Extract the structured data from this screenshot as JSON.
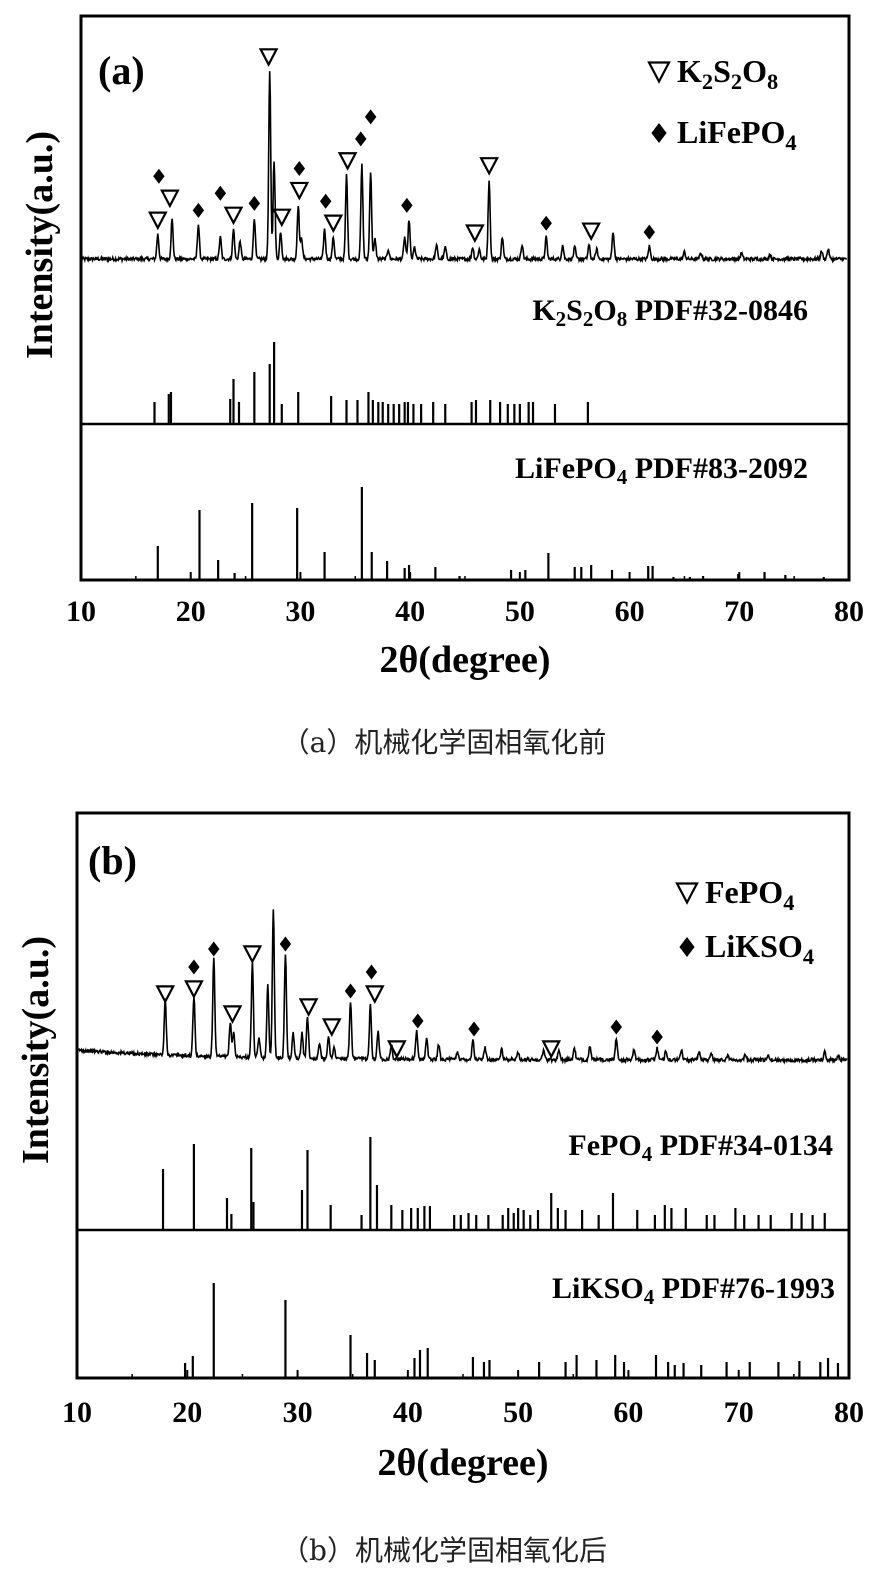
{
  "chart_data": [
    {
      "type": "line",
      "panel_label": "(a)",
      "xlabel": "2θ(degree)",
      "ylabel": "Intensity(a.u.)",
      "xlim": [
        10,
        80
      ],
      "xticks": [
        10,
        20,
        30,
        40,
        50,
        60,
        70,
        80
      ],
      "caption": "（a）机械化学固相氧化前",
      "legend": [
        {
          "symbol": "triangle-down-open",
          "formula": [
            "K",
            "2",
            "S",
            "2",
            "O",
            "8"
          ]
        },
        {
          "symbol": "diamond-filled",
          "formula": [
            "LiFePO",
            "4"
          ]
        }
      ],
      "series": [
        {
          "name": "measured",
          "peaks": [
            [
              17.0,
              25
            ],
            [
              18.3,
              40
            ],
            [
              20.7,
              35
            ],
            [
              22.7,
              22
            ],
            [
              23.9,
              30
            ],
            [
              24.5,
              18
            ],
            [
              25.8,
              42
            ],
            [
              27.2,
              190
            ],
            [
              27.6,
              100
            ],
            [
              28.2,
              28
            ],
            [
              29.8,
              55
            ],
            [
              30.1,
              22
            ],
            [
              32.2,
              30
            ],
            [
              33.0,
              22
            ],
            [
              34.2,
              85
            ],
            [
              35.6,
              95
            ],
            [
              36.4,
              88
            ],
            [
              36.8,
              20
            ],
            [
              38.0,
              10
            ],
            [
              39.5,
              22
            ],
            [
              39.9,
              40
            ],
            [
              40.4,
              12
            ],
            [
              42.4,
              14
            ],
            [
              43.2,
              12
            ],
            [
              45.7,
              12
            ],
            [
              46.3,
              10
            ],
            [
              47.2,
              80
            ],
            [
              48.4,
              22
            ],
            [
              50.2,
              15
            ],
            [
              52.4,
              22
            ],
            [
              53.9,
              14
            ],
            [
              55.0,
              12
            ],
            [
              56.3,
              14
            ],
            [
              57.0,
              10
            ],
            [
              58.5,
              28
            ],
            [
              61.8,
              13
            ],
            [
              65.0,
              7
            ],
            [
              66.5,
              6
            ],
            [
              70.2,
              6
            ],
            [
              72.8,
              5
            ],
            [
              77.5,
              8
            ],
            [
              78.1,
              10
            ]
          ]
        },
        {
          "name": "reference_1",
          "label": [
            "K",
            "2",
            "S",
            "2",
            "O",
            "8",
            " PDF#32-0846"
          ],
          "sticks": [
            [
              16.7,
              22
            ],
            [
              18.0,
              30
            ],
            [
              18.2,
              32
            ],
            [
              23.6,
              25
            ],
            [
              23.9,
              45
            ],
            [
              24.4,
              22
            ],
            [
              25.8,
              52
            ],
            [
              27.2,
              60
            ],
            [
              27.6,
              82
            ],
            [
              28.3,
              20
            ],
            [
              29.8,
              32
            ],
            [
              32.8,
              28
            ],
            [
              34.2,
              24
            ],
            [
              35.2,
              24
            ],
            [
              36.2,
              32
            ],
            [
              36.6,
              24
            ],
            [
              37.1,
              22
            ],
            [
              37.5,
              22
            ],
            [
              38.0,
              20
            ],
            [
              38.5,
              20
            ],
            [
              39.0,
              20
            ],
            [
              39.5,
              22
            ],
            [
              39.8,
              22
            ],
            [
              40.3,
              20
            ],
            [
              41.0,
              20
            ],
            [
              42.1,
              22
            ],
            [
              43.2,
              20
            ],
            [
              45.6,
              22
            ],
            [
              46.0,
              24
            ],
            [
              47.3,
              24
            ],
            [
              48.2,
              22
            ],
            [
              48.9,
              20
            ],
            [
              49.5,
              20
            ],
            [
              50.0,
              20
            ],
            [
              50.8,
              22
            ],
            [
              51.2,
              22
            ],
            [
              53.2,
              20
            ],
            [
              56.2,
              22
            ]
          ]
        },
        {
          "name": "reference_2",
          "label": [
            "LiFePO",
            "4",
            " PDF#83-2092"
          ],
          "sticks": [
            [
              17.0,
              34
            ],
            [
              20.8,
              70
            ],
            [
              22.5,
              20
            ],
            [
              24.0,
              7
            ],
            [
              25.6,
              77
            ],
            [
              29.7,
              72
            ],
            [
              32.2,
              28
            ],
            [
              35.6,
              93
            ],
            [
              36.5,
              28
            ],
            [
              37.9,
              19
            ],
            [
              39.5,
              12
            ],
            [
              39.9,
              15
            ],
            [
              42.3,
              13
            ],
            [
              44.5,
              4
            ],
            [
              49.2,
              10
            ],
            [
              50.5,
              10
            ],
            [
              52.6,
              27
            ],
            [
              55.0,
              13
            ],
            [
              55.6,
              13
            ],
            [
              56.5,
              15
            ],
            [
              58.4,
              10
            ],
            [
              61.7,
              14
            ],
            [
              62.1,
              14
            ],
            [
              64.0,
              3
            ],
            [
              65.5,
              3
            ],
            [
              66.7,
              4
            ],
            [
              69.9,
              6
            ],
            [
              72.3,
              8
            ],
            [
              74.2,
              5
            ],
            [
              77.7,
              3
            ]
          ]
        }
      ],
      "markers": [
        {
          "symbol": "triangle-down-open",
          "x": [
            17.0,
            18.1,
            23.9,
            27.1,
            28.3,
            29.9,
            33.0,
            34.3,
            45.9,
            47.2,
            56.5
          ]
        },
        {
          "symbol": "diamond-filled",
          "x": [
            17.1,
            20.7,
            22.7,
            25.8,
            29.9,
            32.3,
            35.5,
            36.4,
            39.7,
            52.4,
            61.8
          ]
        }
      ]
    },
    {
      "type": "line",
      "panel_label": "(b)",
      "xlabel": "2θ(degree)",
      "ylabel": "Intensity(a.u.)",
      "xlim": [
        10,
        80
      ],
      "xticks": [
        10,
        20,
        30,
        40,
        50,
        60,
        70,
        80
      ],
      "caption": "（b）机械化学固相氧化后",
      "legend": [
        {
          "symbol": "triangle-down-open",
          "formula": [
            "FePO",
            "4"
          ]
        },
        {
          "symbol": "diamond-filled",
          "formula": [
            "LiKSO",
            "4"
          ]
        }
      ],
      "series": [
        {
          "name": "measured",
          "peaks": [
            [
              18.0,
              55
            ],
            [
              20.6,
              60
            ],
            [
              22.4,
              100
            ],
            [
              23.9,
              35
            ],
            [
              24.2,
              25
            ],
            [
              25.9,
              95
            ],
            [
              26.5,
              20
            ],
            [
              27.3,
              72
            ],
            [
              27.8,
              150
            ],
            [
              28.9,
              105
            ],
            [
              29.6,
              25
            ],
            [
              30.4,
              25
            ],
            [
              30.9,
              42
            ],
            [
              32.0,
              15
            ],
            [
              32.8,
              22
            ],
            [
              33.3,
              12
            ],
            [
              34.8,
              58
            ],
            [
              36.6,
              55
            ],
            [
              37.3,
              28
            ],
            [
              38.5,
              14
            ],
            [
              40.8,
              28
            ],
            [
              41.7,
              22
            ],
            [
              42.8,
              15
            ],
            [
              44.5,
              8
            ],
            [
              45.9,
              20
            ],
            [
              47.0,
              12
            ],
            [
              48.5,
              10
            ],
            [
              50.0,
              8
            ],
            [
              52.3,
              10
            ],
            [
              53.7,
              10
            ],
            [
              55.1,
              12
            ],
            [
              56.5,
              14
            ],
            [
              58.9,
              22
            ],
            [
              60.5,
              10
            ],
            [
              62.6,
              12
            ],
            [
              63.4,
              10
            ],
            [
              64.8,
              10
            ],
            [
              66.4,
              8
            ],
            [
              67.5,
              8
            ],
            [
              69.0,
              5
            ],
            [
              70.6,
              5
            ],
            [
              72.7,
              4
            ],
            [
              77.8,
              8
            ],
            [
              79.0,
              5
            ]
          ]
        },
        {
          "name": "reference_1",
          "label": [
            "FePO",
            "4",
            " PDF#34-0134"
          ],
          "sticks": [
            [
              17.8,
              61
            ],
            [
              20.6,
              86
            ],
            [
              23.6,
              32
            ],
            [
              24.0,
              16
            ],
            [
              25.8,
              82
            ],
            [
              26.0,
              28
            ],
            [
              30.4,
              40
            ],
            [
              30.9,
              80
            ],
            [
              33.0,
              25
            ],
            [
              35.8,
              15
            ],
            [
              36.6,
              93
            ],
            [
              37.2,
              45
            ],
            [
              38.5,
              25
            ],
            [
              39.5,
              20
            ],
            [
              40.3,
              22
            ],
            [
              40.9,
              22
            ],
            [
              41.5,
              24
            ],
            [
              42.0,
              24
            ],
            [
              44.2,
              15
            ],
            [
              44.8,
              15
            ],
            [
              45.5,
              17
            ],
            [
              46.2,
              15
            ],
            [
              47.3,
              15
            ],
            [
              48.6,
              15
            ],
            [
              49.1,
              22
            ],
            [
              49.6,
              17
            ],
            [
              50.0,
              22
            ],
            [
              50.5,
              20
            ],
            [
              51.1,
              15
            ],
            [
              51.8,
              20
            ],
            [
              53.0,
              37
            ],
            [
              53.6,
              22
            ],
            [
              54.3,
              20
            ],
            [
              55.8,
              20
            ],
            [
              57.3,
              15
            ],
            [
              58.6,
              37
            ],
            [
              60.8,
              20
            ],
            [
              62.4,
              15
            ],
            [
              63.3,
              25
            ],
            [
              63.9,
              22
            ],
            [
              65.2,
              22
            ],
            [
              67.1,
              15
            ],
            [
              67.8,
              15
            ],
            [
              69.7,
              22
            ],
            [
              70.5,
              15
            ],
            [
              71.8,
              15
            ],
            [
              72.9,
              15
            ],
            [
              74.8,
              17
            ],
            [
              75.7,
              17
            ],
            [
              76.7,
              15
            ],
            [
              77.8,
              17
            ]
          ]
        },
        {
          "name": "reference_2",
          "label": [
            "LiKSO",
            "4",
            " PDF#76-1993"
          ],
          "sticks": [
            [
              19.8,
              15
            ],
            [
              20.5,
              22
            ],
            [
              22.4,
              95
            ],
            [
              28.9,
              78
            ],
            [
              34.8,
              43
            ],
            [
              36.3,
              25
            ],
            [
              37.0,
              18
            ],
            [
              40.6,
              20
            ],
            [
              41.1,
              28
            ],
            [
              41.8,
              30
            ],
            [
              45.9,
              21
            ],
            [
              46.9,
              16
            ],
            [
              47.4,
              18
            ],
            [
              51.9,
              16
            ],
            [
              54.3,
              16
            ],
            [
              55.3,
              23
            ],
            [
              57.1,
              18
            ],
            [
              58.8,
              23
            ],
            [
              59.6,
              16
            ],
            [
              62.5,
              23
            ],
            [
              63.6,
              16
            ],
            [
              64.2,
              13
            ],
            [
              65.0,
              15
            ],
            [
              66.6,
              13
            ],
            [
              68.9,
              16
            ],
            [
              71.0,
              16
            ],
            [
              73.6,
              16
            ],
            [
              75.5,
              17
            ],
            [
              77.4,
              16
            ],
            [
              78.1,
              20
            ],
            [
              79.0,
              15
            ]
          ]
        }
      ],
      "markers": [
        {
          "symbol": "triangle-down-open",
          "x": [
            18.0,
            20.6,
            24.1,
            25.9,
            31.0,
            33.1,
            37.0,
            39.0,
            53.0
          ]
        },
        {
          "symbol": "diamond-filled",
          "x": [
            20.6,
            22.4,
            28.9,
            34.8,
            36.7,
            40.9,
            46.0,
            58.9,
            62.6
          ]
        }
      ]
    }
  ]
}
